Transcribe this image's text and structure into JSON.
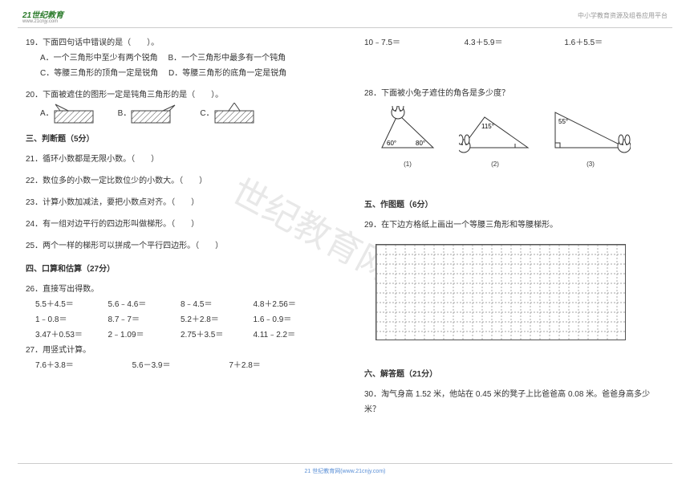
{
  "header": {
    "logo_text": "21世纪教育",
    "logo_url": "www.21cnjy.com",
    "right_text": "中小学教育资源及组卷应用平台"
  },
  "watermark": "世纪教育网精选",
  "footer": "21 世纪教育网(www.21cnjy.com)",
  "left": {
    "q19": {
      "stem": "19．下面四句话中错误的是（　　）。",
      "a": "A．一个三角形中至少有两个锐角",
      "b": "B．一个三角形中最多有一个钝角",
      "c": "C．等腰三角形的顶角一定是锐角",
      "d": "D．等腰三角形的底角一定是锐角"
    },
    "q20": {
      "stem": "20．下面被遮住的图形一定是钝角三角形的是（　　）。",
      "a": "A．",
      "b": "B．",
      "c": "C．"
    },
    "sec3": "三、判断题（5分）",
    "q21": "21．循环小数都是无限小数。（　　）",
    "q22": "22．数位多的小数一定比数位少的小数大。（　　）",
    "q23": "23．计算小数加减法，要把小数点对齐。（　　）",
    "q24": "24．有一组对边平行的四边形叫做梯形。（　　）",
    "q25": "25．两个一样的梯形可以拼成一个平行四边形。（　　）",
    "sec4": "四、口算和估算（27分）",
    "q26": {
      "stem": "26．直接写出得数。",
      "rows": [
        [
          "5.5＋4.5＝",
          "5.6﹣4.6＝",
          "8﹣4.5＝",
          "4.8＋2.56＝"
        ],
        [
          "1﹣0.8＝",
          "8.7﹣7＝",
          "5.2＋2.8＝",
          "1.6﹣0.9＝"
        ],
        [
          "3.47＋0.53＝",
          "2﹣1.09＝",
          "2.75＋3.5＝",
          "4.11﹣2.2＝"
        ]
      ]
    },
    "q27": {
      "stem": "27．用竖式计算。",
      "rows": [
        [
          "7.6＋3.8＝",
          "5.6－3.9＝",
          "7＋2.8＝"
        ]
      ]
    }
  },
  "right": {
    "top_row": [
      "10﹣7.5＝",
      "4.3＋5.9＝",
      "1.6＋5.5＝"
    ],
    "q28": {
      "stem": "28．下面被小兔子遮住的角各是多少度？",
      "a1": {
        "v1": "60°",
        "v2": "80°",
        "label": "(1)"
      },
      "a2": {
        "v1": "115°",
        "label": "(2)"
      },
      "a3": {
        "v1": "55°",
        "label": "(3)"
      }
    },
    "sec5": "五、作图题（6分）",
    "q29": "29．在下边方格纸上画出一个等腰三角形和等腰梯形。",
    "grid": {
      "cols": 26,
      "rows": 10,
      "cell": 12,
      "stroke": "#888",
      "dash": "2 2"
    },
    "sec6": "六、解答题（21分）",
    "q30": "30．淘气身高 1.52 米，他站在 0.45 米的凳子上比爸爸高 0.08 米。爸爸身高多少米？"
  },
  "style": {
    "text_color": "#333333",
    "font_size": 10,
    "hatch_fill": "#d8d8d8",
    "hatch_stroke": "#444444"
  }
}
